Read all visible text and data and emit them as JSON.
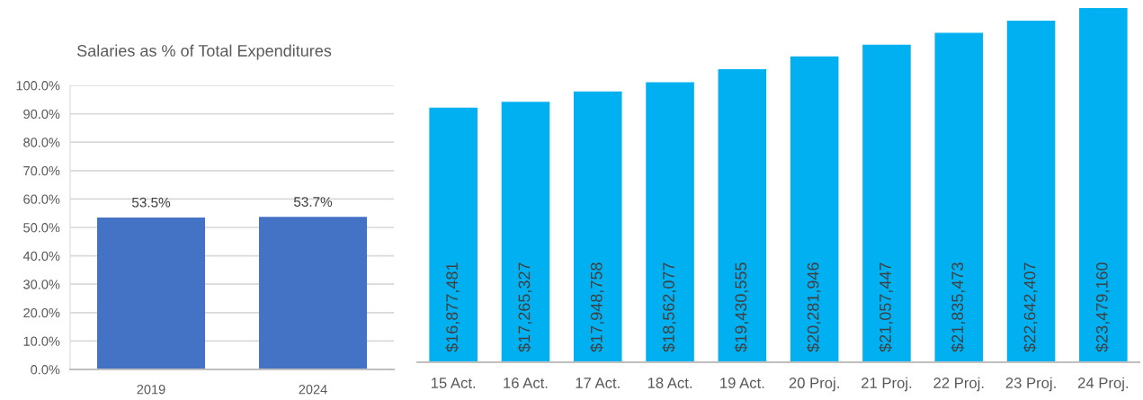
{
  "chart_data": [
    {
      "type": "bar",
      "title": "Salaries as % of Total Expenditures",
      "categories": [
        "2019",
        "2024"
      ],
      "values": [
        53.5,
        53.7
      ],
      "value_labels": [
        "53.5%",
        "53.7%"
      ],
      "color": "#4472c4",
      "ylim": [
        0,
        100
      ],
      "yticks": [
        {
          "value": 0,
          "label": "0.0%"
        },
        {
          "value": 10,
          "label": "10.0%"
        },
        {
          "value": 20,
          "label": "20.0%"
        },
        {
          "value": 30,
          "label": "30.0%"
        },
        {
          "value": 40,
          "label": "40.0%"
        },
        {
          "value": 50,
          "label": "50.0%"
        },
        {
          "value": 60,
          "label": "60.0%"
        },
        {
          "value": 70,
          "label": "70.0%"
        },
        {
          "value": 80,
          "label": "80.0%"
        },
        {
          "value": 90,
          "label": "90.0%"
        },
        {
          "value": 100,
          "label": "100.0%"
        }
      ],
      "grid": "y"
    },
    {
      "type": "bar",
      "categories": [
        "15 Act.",
        "16 Act.",
        "17 Act.",
        "18 Act.",
        "19 Act.",
        "20 Proj.",
        "21 Proj.",
        "22 Proj.",
        "23 Proj.",
        "24 Proj."
      ],
      "values": [
        16877481,
        17265327,
        17948758,
        18562077,
        19430555,
        20281946,
        21057447,
        21835473,
        22642407,
        23479160
      ],
      "value_labels": [
        "$16,877,481",
        "$17,265,327",
        "$17,948,758",
        "$18,562,077",
        "$19,430,555",
        "$20,281,946",
        "$21,057,447",
        "$21,835,473",
        "$22,642,407",
        "$23,479,160"
      ],
      "color": "#00b0f0",
      "tick_labels": "x"
    }
  ]
}
